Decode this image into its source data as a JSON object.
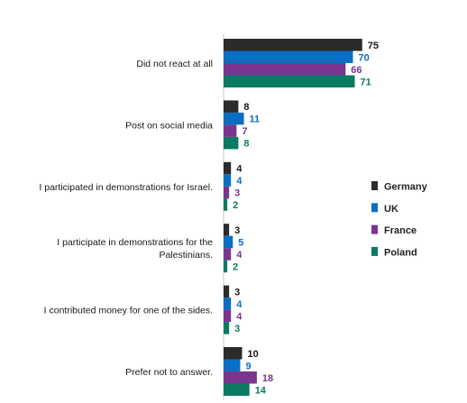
{
  "chart_data": {
    "type": "bar",
    "orientation": "horizontal",
    "categories": [
      "Did not react at all",
      "Post on social media",
      "I participated in demonstrations for Israel.",
      "I participate in demonstrations for the Palestinians.",
      "I contributed money for one of the sides.",
      "Prefer not to answer."
    ],
    "series": [
      {
        "name": "Germany",
        "color": "#2b2b2b",
        "label_color": "#1a1a1a",
        "values": [
          75,
          8,
          4,
          3,
          3,
          10
        ]
      },
      {
        "name": "UK",
        "color": "#0a6fc2",
        "label_color": "#0a6fc2",
        "values": [
          70,
          11,
          4,
          5,
          4,
          9
        ]
      },
      {
        "name": "France",
        "color": "#7a3590",
        "label_color": "#7a3590",
        "values": [
          66,
          7,
          3,
          4,
          4,
          18
        ]
      },
      {
        "name": "Poland",
        "color": "#0b7a63",
        "label_color": "#0b7a63",
        "values": [
          71,
          8,
          2,
          2,
          3,
          14
        ]
      }
    ],
    "title": "",
    "xlabel": "",
    "ylabel": "",
    "xlim": [
      0,
      100
    ],
    "grid": false,
    "legend_position": "right"
  }
}
